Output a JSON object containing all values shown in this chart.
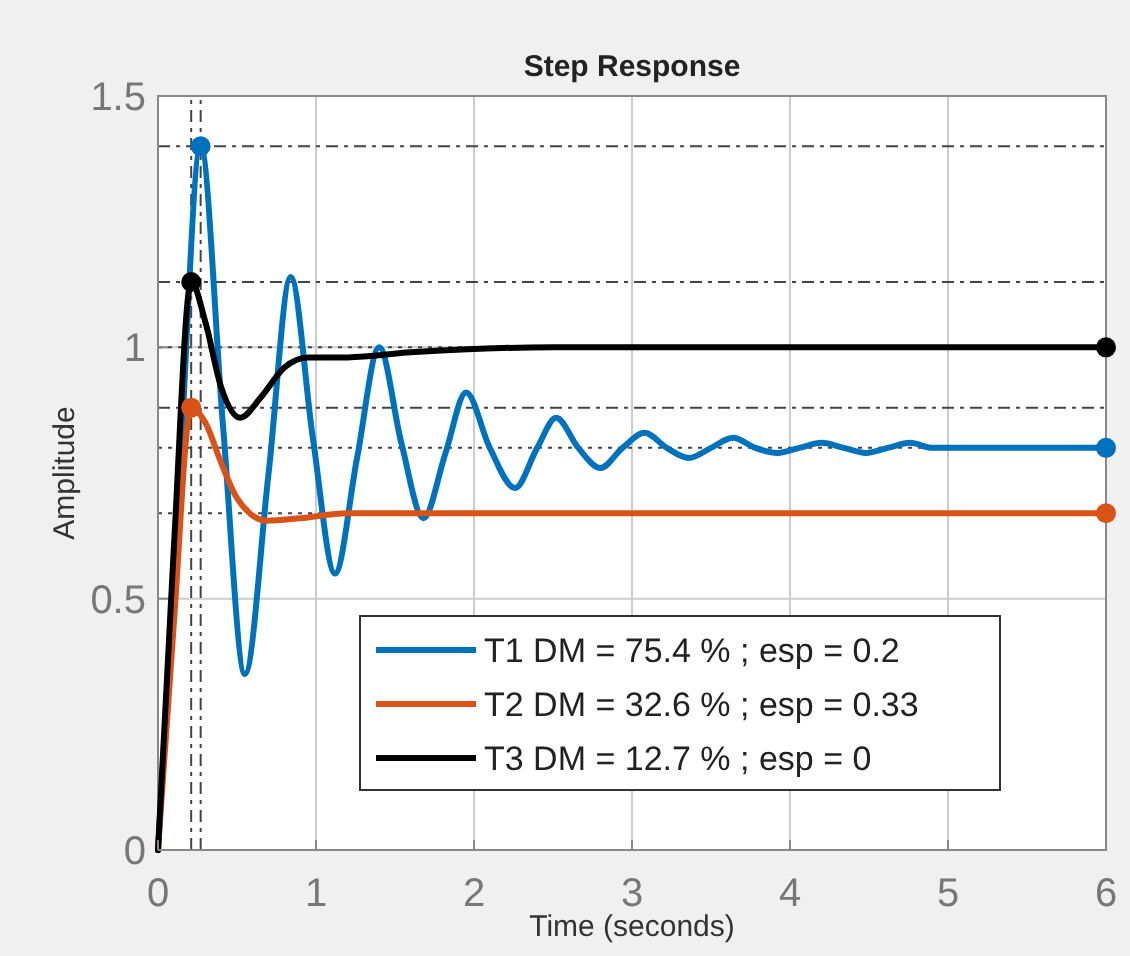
{
  "chart_data": {
    "type": "line",
    "title": "Step Response",
    "xlabel": "Time (seconds)",
    "ylabel": "Amplitude",
    "xlim": [
      0,
      6
    ],
    "ylim": [
      0,
      1.5
    ],
    "xticks": [
      0,
      1,
      2,
      3,
      4,
      5,
      6
    ],
    "yticks": [
      0,
      0.5,
      1,
      1.5
    ],
    "grid": true,
    "legend": "bottom right",
    "marker": "none",
    "line_style": "solid",
    "series": [
      {
        "name": "T1 DM = 75.4 % ; esp = 0.2",
        "color": "#0072bd",
        "x": [
          0,
          0.13,
          0.27,
          0.41,
          0.55,
          0.7,
          0.84,
          0.98,
          1.12,
          1.26,
          1.4,
          1.54,
          1.68,
          1.82,
          1.95,
          2.1,
          2.26,
          2.4,
          2.52,
          2.66,
          2.8,
          2.94,
          3.08,
          3.22,
          3.36,
          3.5,
          3.64,
          3.78,
          3.92,
          4.06,
          4.2,
          4.34,
          4.48,
          4.62,
          4.76,
          4.9,
          5.04,
          5.18,
          5.32,
          5.46,
          5.6,
          6
        ],
        "values": [
          0,
          0.7,
          1.4,
          0.85,
          0.35,
          0.75,
          1.14,
          0.82,
          0.55,
          0.78,
          1.0,
          0.81,
          0.66,
          0.79,
          0.91,
          0.8,
          0.72,
          0.8,
          0.86,
          0.8,
          0.76,
          0.8,
          0.83,
          0.8,
          0.78,
          0.8,
          0.82,
          0.8,
          0.79,
          0.8,
          0.81,
          0.8,
          0.79,
          0.8,
          0.81,
          0.8,
          0.8,
          0.8,
          0.8,
          0.8,
          0.8,
          0.8
        ]
      },
      {
        "name": "T2 DM = 32.6 % ; esp = 0.33",
        "color": "#d95319",
        "x": [
          0,
          0.1,
          0.21,
          0.3,
          0.4,
          0.5,
          0.69,
          0.9,
          1.2,
          2,
          6
        ],
        "values": [
          0,
          0.45,
          0.88,
          0.85,
          0.77,
          0.7,
          0.655,
          0.66,
          0.67,
          0.67,
          0.67
        ]
      },
      {
        "name": "T3 DM = 12.7 % ; esp = 0",
        "color": "#000000",
        "x": [
          0,
          0.1,
          0.21,
          0.3,
          0.4,
          0.52,
          0.65,
          0.8,
          0.95,
          1.2,
          1.6,
          2.5,
          6
        ],
        "values": [
          0,
          0.6,
          1.13,
          1.05,
          0.92,
          0.86,
          0.9,
          0.96,
          0.98,
          0.98,
          0.99,
          1.0,
          1.0
        ]
      },
      {
        "type": "scatter",
        "color": "#0072bd",
        "x": [
          0.27,
          6
        ],
        "values": [
          1.4,
          0.8
        ],
        "marker": "circle"
      },
      {
        "type": "scatter",
        "color": "#d95319",
        "x": [
          0.21,
          6
        ],
        "values": [
          0.88,
          0.67
        ],
        "marker": "circle"
      },
      {
        "type": "scatter",
        "color": "#000000",
        "x": [
          0.21,
          6
        ],
        "values": [
          1.13,
          1.0
        ],
        "marker": "circle"
      }
    ],
    "ref_lines": [
      {
        "axis": "y",
        "value": 1.4,
        "label": null,
        "color": "#444444",
        "line_style": "dashdot"
      },
      {
        "axis": "y",
        "value": 1.13,
        "label": null,
        "color": "#444444",
        "line_style": "dashdot"
      },
      {
        "axis": "y",
        "value": 0.88,
        "label": null,
        "color": "#444444",
        "line_style": "dashdot"
      },
      {
        "axis": "x",
        "value": 0.27,
        "label": null,
        "color": "#444444",
        "line_style": "dashdot"
      },
      {
        "axis": "x",
        "value": 0.21,
        "label": null,
        "color": "#444444",
        "line_style": "dashdot"
      },
      {
        "axis": "y",
        "value": 1.0,
        "label": null,
        "color": "#444444",
        "line_style": "dotted"
      },
      {
        "axis": "y",
        "value": 0.8,
        "label": null,
        "color": "#444444",
        "line_style": "dotted"
      },
      {
        "axis": "y",
        "value": 0.67,
        "label": null,
        "color": "#444444",
        "line_style": "dotted"
      }
    ]
  }
}
